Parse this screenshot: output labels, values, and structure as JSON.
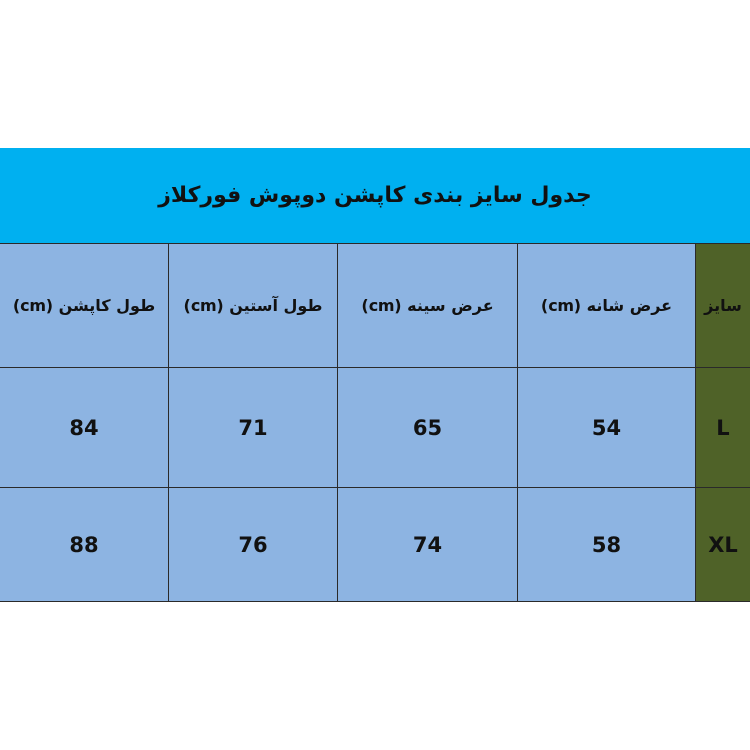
{
  "title": "جدول سایز بندی کاپشن دوپوش فورکلاز",
  "colors": {
    "title_bg": "#00b0f0",
    "cell_bg": "#8db4e2",
    "size_bg": "#4f6228"
  },
  "table": {
    "headers": [
      "طول کاپشن (cm)",
      "طول آستین (cm)",
      "عرض سینه (cm)",
      "عرض شانه (cm)",
      "سایز"
    ],
    "rows": [
      [
        "84",
        "71",
        "65",
        "54",
        "L"
      ],
      [
        "88",
        "76",
        "74",
        "58",
        "XL"
      ]
    ]
  }
}
